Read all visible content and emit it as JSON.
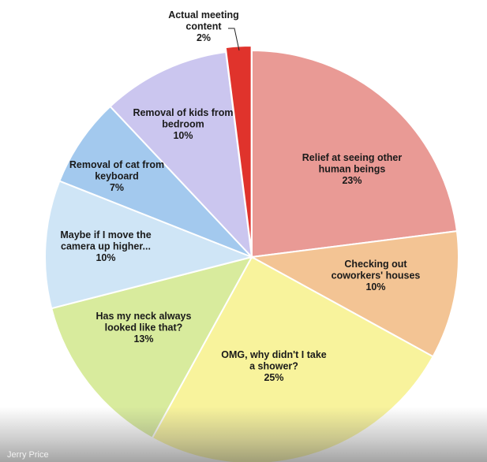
{
  "credit": "Jerry Price",
  "chart_data": {
    "type": "pie",
    "title": "",
    "slices": [
      {
        "lines": [
          "Relief at seeing other",
          "human beings"
        ],
        "percent_label": "23%",
        "value": 23,
        "color": "#e99a95"
      },
      {
        "lines": [
          "Checking out",
          "coworkers' houses"
        ],
        "percent_label": "10%",
        "value": 10,
        "color": "#f3c494"
      },
      {
        "lines": [
          "OMG, why didn't I take",
          "a shower?"
        ],
        "percent_label": "25%",
        "value": 25,
        "color": "#f8f39c"
      },
      {
        "lines": [
          "Has my neck always",
          "looked like that?"
        ],
        "percent_label": "13%",
        "value": 13,
        "color": "#d8eb9d"
      },
      {
        "lines": [
          "Maybe if I move the",
          "camera up higher..."
        ],
        "percent_label": "10%",
        "value": 10,
        "color": "#cfe5f6"
      },
      {
        "lines": [
          "Removal of cat from",
          "keyboard"
        ],
        "percent_label": "7%",
        "value": 7,
        "color": "#a3c9ee"
      },
      {
        "lines": [
          "Removal of kids from",
          "bedroom"
        ],
        "percent_label": "10%",
        "value": 10,
        "color": "#cbc6ef"
      },
      {
        "lines": [
          "Actual meeting",
          "content"
        ],
        "percent_label": "2%",
        "value": 2,
        "color": "#e0332c"
      }
    ]
  }
}
